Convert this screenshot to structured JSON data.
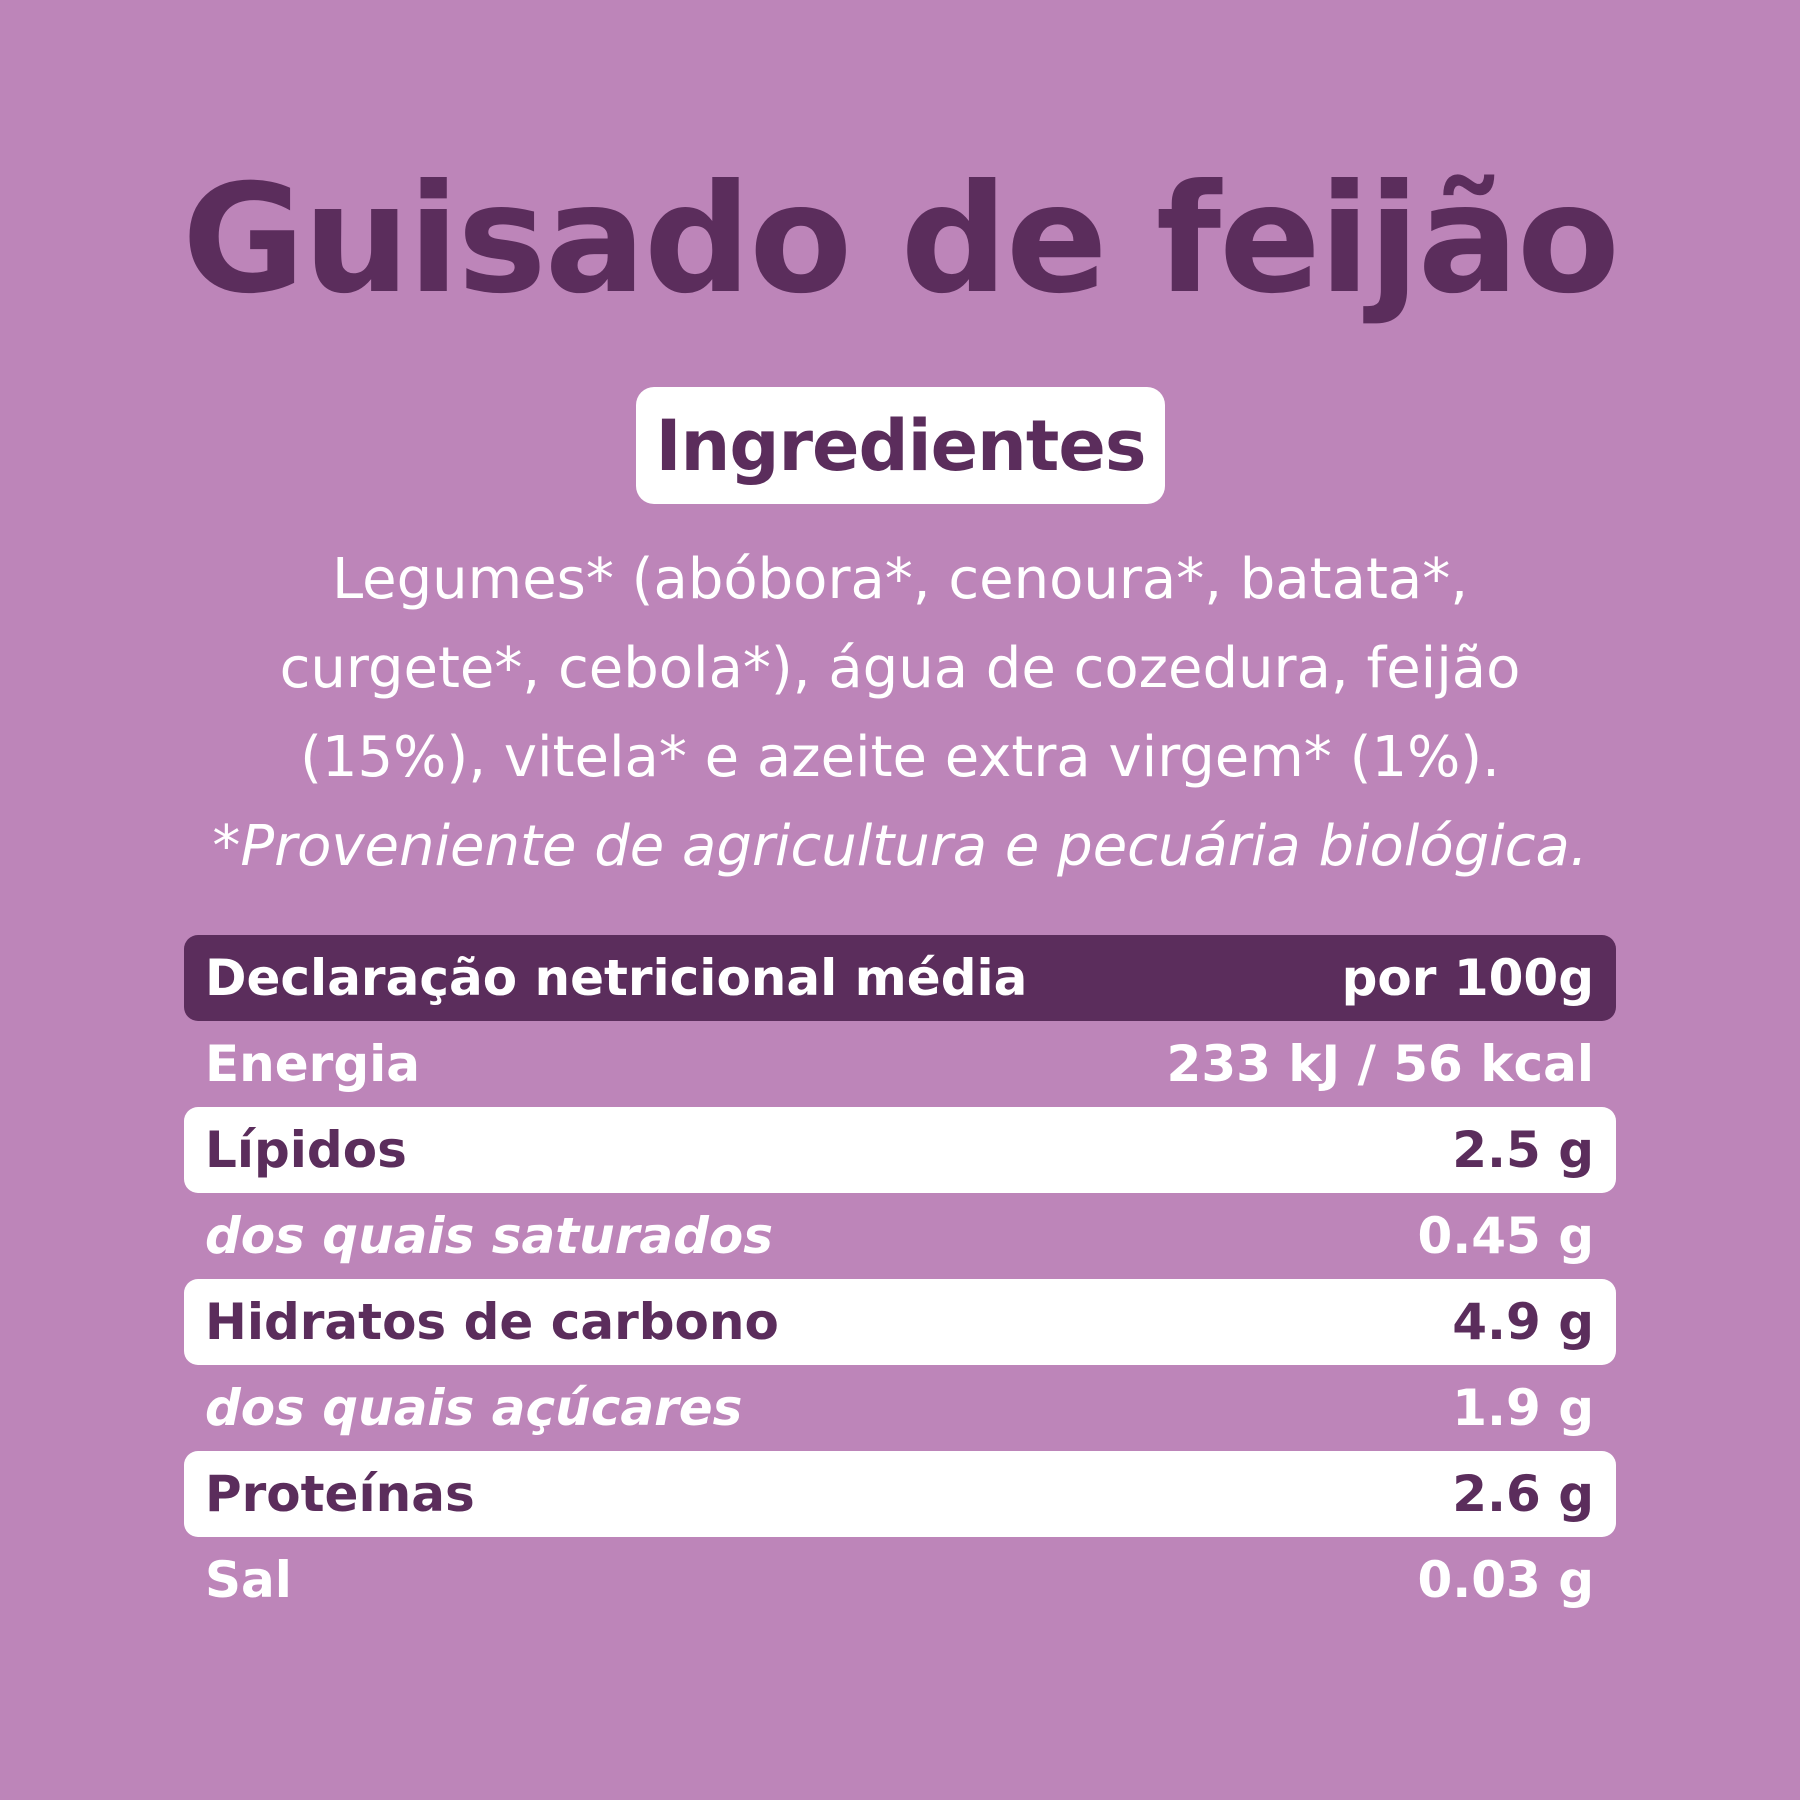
{
  "title": "Guisado de feijão",
  "ingredients_heading": "Ingredientes",
  "ingredients_lines": [
    "Legumes* (abóbora*, cenoura*, batata*,",
    "curgete*, cebola*), água de cozedura, feijão",
    "(15%), vitela* e azeite extra virgem* (1%)."
  ],
  "ingredients_note": "*Proveniente de agricultura e pecuária biológica.",
  "nutrition": {
    "header_label": "Declaração netricional média",
    "header_value": "por 100g",
    "rows": [
      {
        "label": "Energia",
        "value": "233 kJ / 56 kcal"
      },
      {
        "label": "Lípidos",
        "value": "2.5 g"
      },
      {
        "label": "dos quais saturados",
        "value": "0.45 g"
      },
      {
        "label": "Hidratos de carbono",
        "value": "4.9 g"
      },
      {
        "label": "dos quais açúcares",
        "value": "1.9 g"
      },
      {
        "label": "Proteínas",
        "value": "2.6 g"
      },
      {
        "label": "Sal",
        "value": "0.03 g"
      }
    ]
  },
  "colors": {
    "background": "#bd85b9",
    "dark_purple": "#5b2d5c",
    "white": "#ffffff"
  }
}
